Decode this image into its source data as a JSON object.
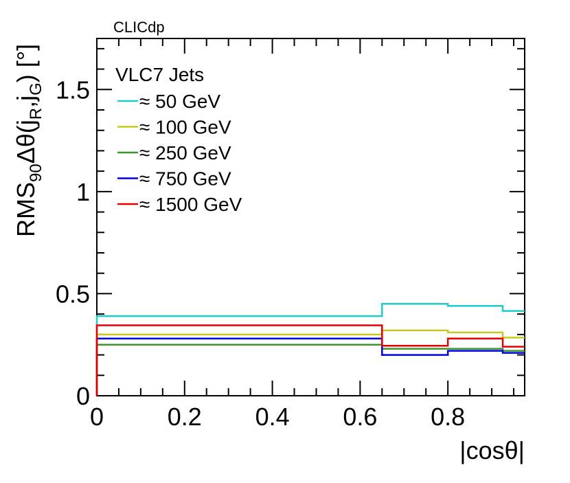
{
  "chart_data": {
    "type": "line",
    "step": true,
    "experiment_label": "CLICdp",
    "legend_title": "VLC7 Jets",
    "xlabel": "|cosθ|",
    "ylabel": {
      "main": "RMS",
      "sub90": "90",
      "delta_theta": "Δθ(j",
      "subR": "R",
      "comma_j": ",j",
      "subG": "G",
      "unit": ") [°]"
    },
    "xlim": [
      0,
      0.975
    ],
    "ylim": [
      0,
      1.75
    ],
    "x_ticks": [
      0,
      0.2,
      0.4,
      0.6,
      0.8
    ],
    "x_tick_labels": [
      "0",
      "0.2",
      "0.4",
      "0.6",
      "0.8"
    ],
    "y_ticks": [
      0,
      0.5,
      1,
      1.5
    ],
    "y_tick_labels": [
      "0",
      "0.5",
      "1",
      "1.5"
    ],
    "bin_edges": [
      0,
      0.65,
      0.8,
      0.925,
      0.975
    ],
    "series": [
      {
        "name": "≈ 50 GeV",
        "color": "#1ecccc",
        "values": [
          0.39,
          0.45,
          0.44,
          0.415
        ]
      },
      {
        "name": "≈ 100 GeV",
        "color": "#c8c81e",
        "values": [
          0.3,
          0.32,
          0.31,
          0.285
        ]
      },
      {
        "name": "≈ 250 GeV",
        "color": "#3c9628",
        "values": [
          0.25,
          0.23,
          0.23,
          0.22
        ]
      },
      {
        "name": "≈ 750 GeV",
        "color": "#0000e6",
        "values": [
          0.28,
          0.2,
          0.22,
          0.21
        ]
      },
      {
        "name": "≈ 1500 GeV",
        "color": "#e60000",
        "values": [
          0.345,
          0.245,
          0.28,
          0.24
        ]
      }
    ]
  }
}
